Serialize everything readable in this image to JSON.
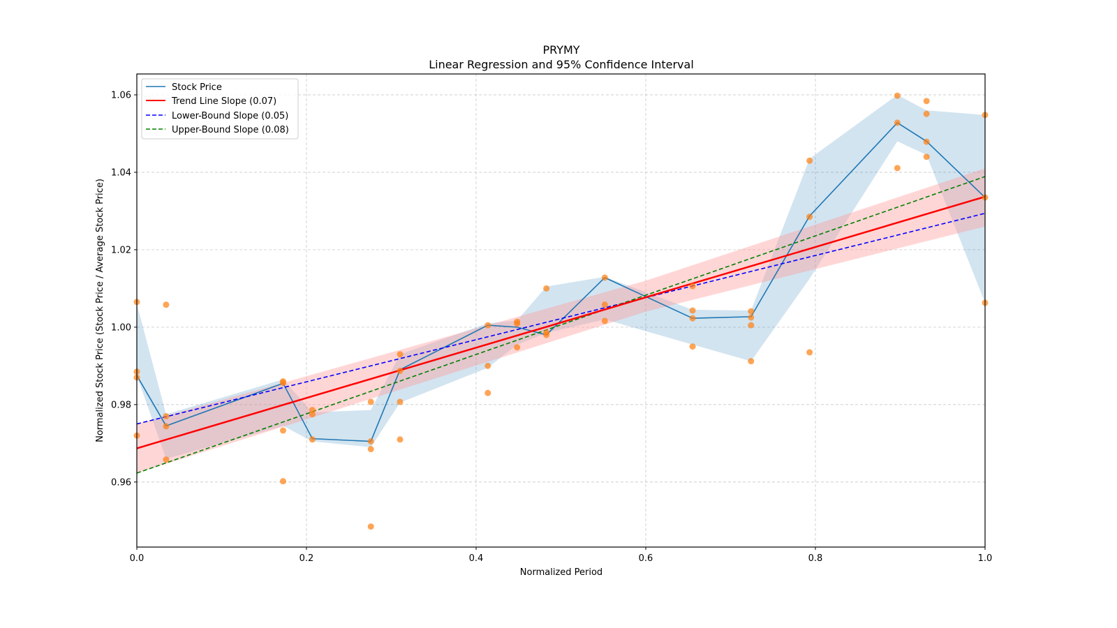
{
  "colors": {
    "stock_line": "#1f77b4",
    "stock_band": "#1f77b4",
    "scatter": "#ff7f0e",
    "trend": "#ff0000",
    "trend_band": "#ff9999",
    "lower": "#0000ff",
    "upper": "#008000",
    "grid": "#b0b0b0"
  },
  "chart_data": {
    "type": "line",
    "title": "PRYMY",
    "subtitle": "Linear Regression and 95% Confidence Interval",
    "xlabel": "Normalized Period",
    "ylabel": "Normalized Stock Price (Stock Price / Average Stock Price)",
    "xlim": [
      0.0,
      1.0
    ],
    "ylim": [
      0.9432,
      1.0654
    ],
    "grid": true,
    "legend_position": "top-left",
    "x_ticks": [
      "0.0",
      "0.2",
      "0.4",
      "0.6",
      "0.8",
      "1.0"
    ],
    "x_tick_values": [
      0.0,
      0.2,
      0.4,
      0.6,
      0.8,
      1.0
    ],
    "y_ticks": [
      "0.96",
      "0.98",
      "1.00",
      "1.02",
      "1.04",
      "1.06"
    ],
    "y_tick_values": [
      0.96,
      0.98,
      1.0,
      1.02,
      1.04,
      1.06
    ],
    "legend": [
      {
        "label": "Stock Price",
        "style": "solid",
        "color_key": "stock_line"
      },
      {
        "label": "Trend Line Slope (0.07)",
        "style": "solid",
        "color_key": "trend"
      },
      {
        "label": "Lower-Bound Slope (0.05)",
        "style": "dashed",
        "color_key": "lower"
      },
      {
        "label": "Upper-Bound Slope (0.08)",
        "style": "dashed",
        "color_key": "upper"
      }
    ],
    "stock_price": {
      "name": "Stock Price",
      "x": [
        0.0,
        0.0345,
        0.1724,
        0.2069,
        0.2759,
        0.3103,
        0.4138,
        0.4483,
        0.4828,
        0.5517,
        0.6552,
        0.7241,
        0.7931,
        0.8966,
        0.931,
        1.0
      ],
      "y": [
        0.9875,
        0.9745,
        0.9855,
        0.9712,
        0.9705,
        0.989,
        1.0005,
        1.0,
        0.998,
        1.0128,
        1.0023,
        1.0027,
        1.0287,
        1.0528,
        1.048,
        1.0335
      ],
      "ci_upper": [
        1.006,
        0.9775,
        0.9865,
        0.978,
        0.9786,
        0.993,
        1.001,
        1.0017,
        1.0105,
        1.013,
        1.0045,
        1.0043,
        1.0435,
        1.06,
        1.056,
        1.0548
      ],
      "ci_lower": [
        0.9875,
        0.966,
        0.9745,
        0.9705,
        0.969,
        0.9805,
        0.9895,
        0.9955,
        0.9985,
        1.002,
        0.9955,
        0.9912,
        1.0125,
        1.048,
        1.0445,
        1.0063
      ]
    },
    "scatter": {
      "name": "Observations",
      "points": [
        [
          0.0,
          1.0065
        ],
        [
          0.0,
          0.9885
        ],
        [
          0.0,
          0.987
        ],
        [
          0.0,
          0.972
        ],
        [
          0.0345,
          1.0058
        ],
        [
          0.0345,
          0.977
        ],
        [
          0.0345,
          0.9744
        ],
        [
          0.0345,
          0.9658
        ],
        [
          0.1724,
          0.986
        ],
        [
          0.1724,
          0.9856
        ],
        [
          0.1724,
          0.9733
        ],
        [
          0.1724,
          0.9602
        ],
        [
          0.2069,
          0.9786
        ],
        [
          0.2069,
          0.9775
        ],
        [
          0.2069,
          0.971
        ],
        [
          0.2759,
          0.9807
        ],
        [
          0.2759,
          0.9705
        ],
        [
          0.2759,
          0.9685
        ],
        [
          0.2759,
          0.9485
        ],
        [
          0.3103,
          0.993
        ],
        [
          0.3103,
          0.9887
        ],
        [
          0.3103,
          0.9807
        ],
        [
          0.3103,
          0.971
        ],
        [
          0.4138,
          1.0005
        ],
        [
          0.4138,
          0.99
        ],
        [
          0.4138,
          0.983
        ],
        [
          0.4483,
          1.0014
        ],
        [
          0.4483,
          1.0009
        ],
        [
          0.4483,
          0.9948
        ],
        [
          0.4828,
          1.01
        ],
        [
          0.4828,
          0.9986
        ],
        [
          0.4828,
          0.998
        ],
        [
          0.5517,
          1.0128
        ],
        [
          0.5517,
          1.0058
        ],
        [
          0.5517,
          1.0016
        ],
        [
          0.6552,
          1.0106
        ],
        [
          0.6552,
          1.0043
        ],
        [
          0.6552,
          1.0023
        ],
        [
          0.6552,
          0.995
        ],
        [
          0.7241,
          1.0041
        ],
        [
          0.7241,
          1.0025
        ],
        [
          0.7241,
          1.0005
        ],
        [
          0.7241,
          0.9912
        ],
        [
          0.7931,
          1.043
        ],
        [
          0.7931,
          1.0285
        ],
        [
          0.7931,
          0.9935
        ],
        [
          0.8966,
          1.0598
        ],
        [
          0.8966,
          1.0528
        ],
        [
          0.8966,
          1.0411
        ],
        [
          0.931,
          1.0584
        ],
        [
          0.931,
          1.0551
        ],
        [
          0.931,
          1.0479
        ],
        [
          0.931,
          1.044
        ],
        [
          1.0,
          1.0548
        ],
        [
          1.0,
          1.0335
        ],
        [
          1.0,
          1.0063
        ]
      ]
    },
    "trend_line": {
      "name": "Trend Line Slope (0.07)",
      "slope": 0.065,
      "intercept": 0.9687
    },
    "trend_ci": {
      "x": [
        0.0,
        0.6,
        1.0
      ],
      "upper": [
        0.975,
        1.012,
        1.041
      ],
      "lower": [
        0.9623,
        1.004,
        1.026
      ]
    },
    "lower_bound_line": {
      "name": "Lower-Bound Slope (0.05)",
      "slope": 0.0544,
      "intercept": 0.975
    },
    "upper_bound_line": {
      "name": "Upper-Bound Slope (0.08)",
      "slope": 0.0766,
      "intercept": 0.9623
    }
  }
}
